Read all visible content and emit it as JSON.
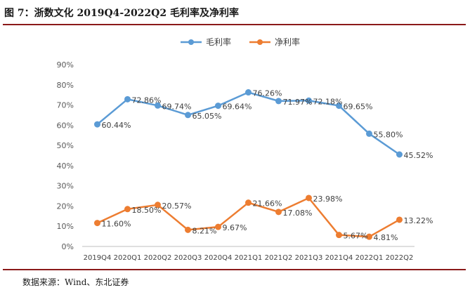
{
  "header": {
    "title": "图 7：浙数文化 2019Q4-2022Q2 毛利率及净利率"
  },
  "footer": {
    "source": "数据来源：Wind、东北证券"
  },
  "chart_data": {
    "type": "line",
    "categories": [
      "2019Q4",
      "2020Q1",
      "2020Q2",
      "2020Q3",
      "2020Q4",
      "2021Q1",
      "2021Q2",
      "2021Q3",
      "2021Q4",
      "2022Q1",
      "2022Q2"
    ],
    "series": [
      {
        "name": "毛利率",
        "color": "#5b9bd5",
        "values": [
          60.44,
          72.86,
          69.74,
          65.05,
          69.64,
          76.26,
          71.97,
          72.18,
          69.65,
          55.8,
          45.52
        ],
        "labels": [
          "60.44%",
          "72.86%",
          "69.74%",
          "65.05%",
          "69.64%",
          "76.26%",
          "71.97%",
          "72.18%",
          "69.65%",
          "55.80%",
          "45.52%"
        ]
      },
      {
        "name": "净利率",
        "color": "#ed7d31",
        "values": [
          11.6,
          18.5,
          20.57,
          8.21,
          9.67,
          21.66,
          17.08,
          23.98,
          5.67,
          4.81,
          13.22
        ],
        "labels": [
          "11.60%",
          "18.50%",
          "20.57%",
          "8.21%",
          "9.67%",
          "21.66%",
          "17.08%",
          "23.98%",
          "5.67%",
          "4.81%",
          "13.22%"
        ]
      }
    ],
    "ylim": [
      0,
      90
    ],
    "yticks": [
      "0%",
      "10%",
      "20%",
      "30%",
      "40%",
      "50%",
      "60%",
      "70%",
      "80%",
      "90%"
    ],
    "grid": false,
    "legend_position": "top"
  }
}
